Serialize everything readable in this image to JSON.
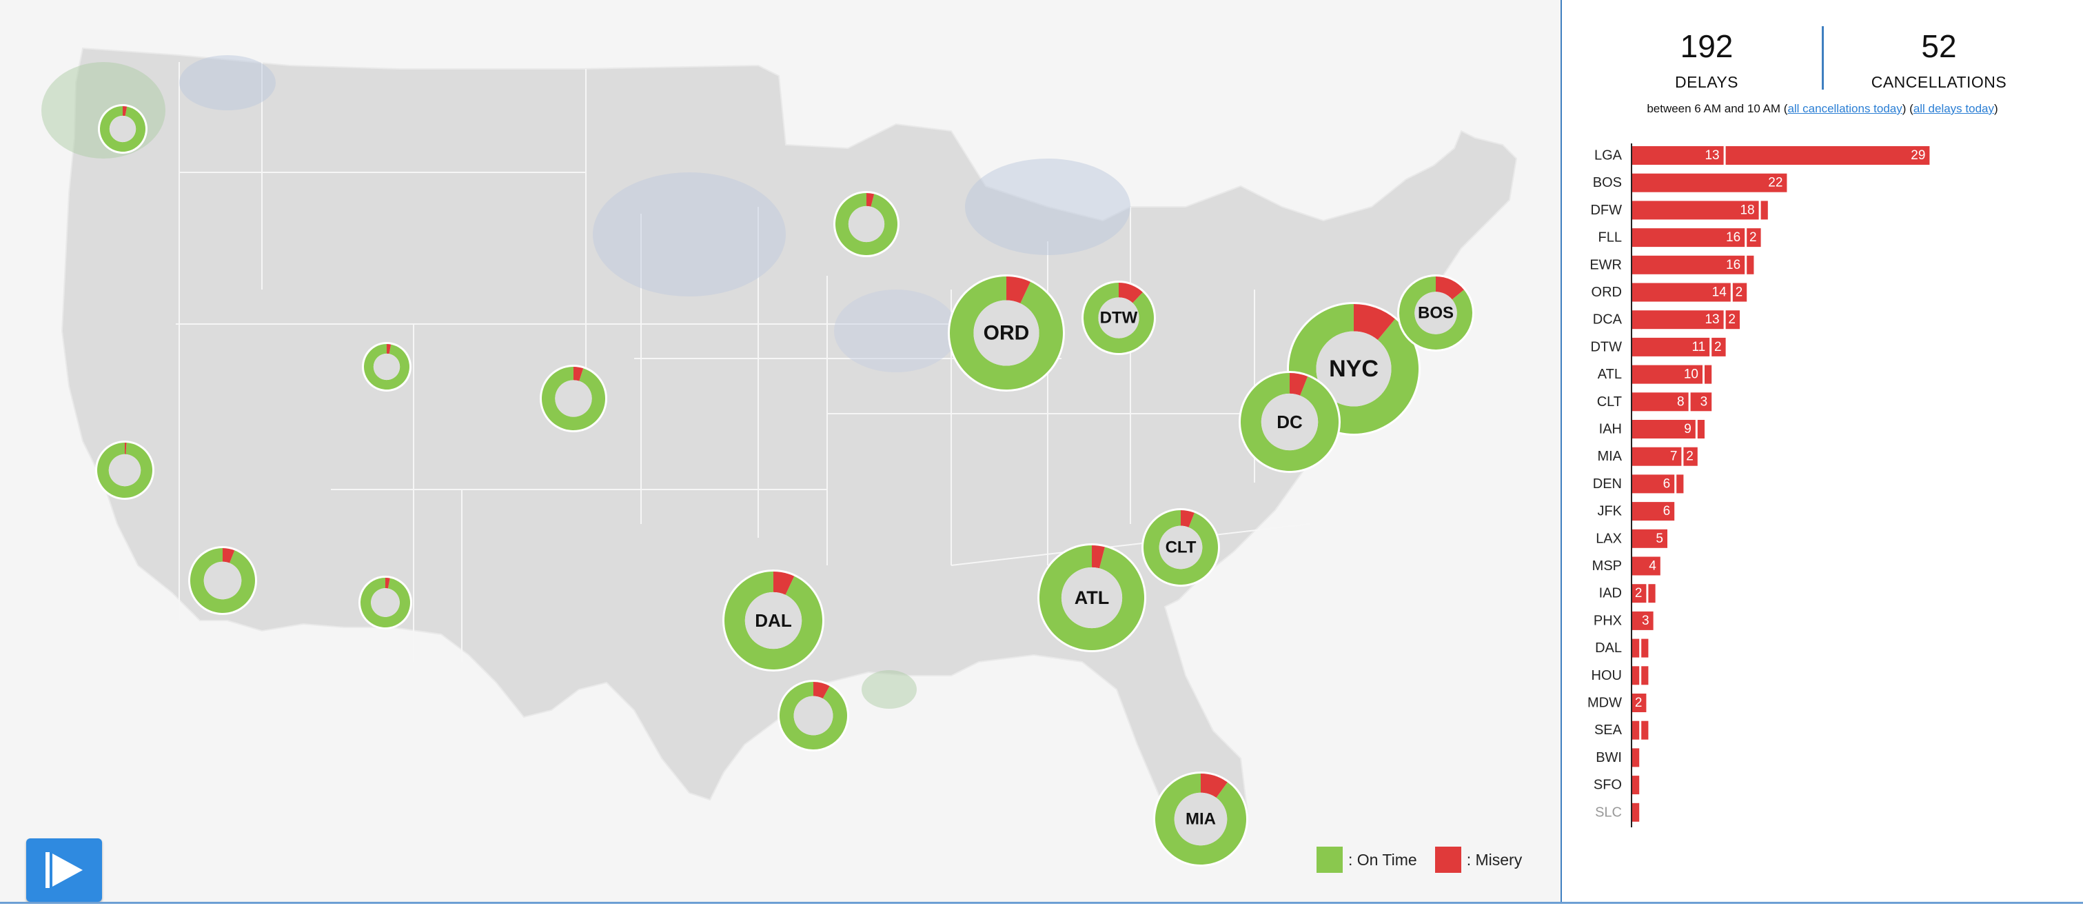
{
  "stats": {
    "delays_value": "192",
    "delays_label": "DELAYS",
    "cancellations_value": "52",
    "cancellations_label": "CANCELLATIONS"
  },
  "subline": {
    "prefix": "between 6 AM and 10 AM (",
    "cancellations_link": "all cancellations today",
    "mid": ") (",
    "delays_link": "all delays today",
    "suffix": ")"
  },
  "legend": {
    "on_time_label": ": On Time",
    "misery_label": ": Misery",
    "on_time_color": "#8ac84e",
    "misery_color": "#e03a3a"
  },
  "play_button": {
    "icon": "play-icon"
  },
  "hubs": [
    {
      "label": "",
      "misery_frac": 0.03
    },
    {
      "label": "",
      "misery_frac": 0.04
    },
    {
      "label": "",
      "misery_frac": 0.03
    },
    {
      "label": "",
      "misery_frac": 0.05
    },
    {
      "label": "",
      "misery_frac": 0.01
    },
    {
      "label": "",
      "misery_frac": 0.06
    },
    {
      "label": "",
      "misery_frac": 0.03
    },
    {
      "label": "",
      "misery_frac": 0.08
    },
    {
      "label": "ORD",
      "misery_frac": 0.07
    },
    {
      "label": "DTW",
      "misery_frac": 0.12
    },
    {
      "label": "NYC",
      "misery_frac": 0.11
    },
    {
      "label": "BOS",
      "misery_frac": 0.14
    },
    {
      "label": "DC",
      "misery_frac": 0.06
    },
    {
      "label": "CLT",
      "misery_frac": 0.06
    },
    {
      "label": "ATL",
      "misery_frac": 0.04
    },
    {
      "label": "DAL",
      "misery_frac": 0.07
    },
    {
      "label": "MIA",
      "misery_frac": 0.1
    }
  ],
  "chart_data": {
    "type": "bar",
    "stacked": true,
    "orientation": "horizontal",
    "categories": [
      "LGA",
      "BOS",
      "DFW",
      "FLL",
      "EWR",
      "ORD",
      "DCA",
      "DTW",
      "ATL",
      "CLT",
      "IAH",
      "MIA",
      "DEN",
      "JFK",
      "LAX",
      "MSP",
      "IAD",
      "PHX",
      "DAL",
      "HOU",
      "MDW",
      "SEA",
      "BWI",
      "SFO",
      "SLC"
    ],
    "series": [
      {
        "values": [
          13,
          22,
          18,
          16,
          16,
          14,
          13,
          11,
          10,
          8,
          9,
          7,
          6,
          6,
          5,
          4,
          2,
          3,
          1,
          1,
          2,
          1,
          1,
          1,
          1
        ],
        "labels": [
          "13",
          "22",
          "18",
          "16",
          "16",
          "14",
          "13",
          "11",
          "10",
          "8",
          "9",
          "7",
          "6",
          "6",
          "5",
          "4",
          "2",
          "3",
          "",
          "",
          "2",
          "",
          "",
          "",
          ""
        ]
      },
      {
        "values": [
          29,
          0,
          1,
          2,
          1,
          2,
          2,
          2,
          1,
          3,
          1,
          2,
          1,
          0,
          0,
          0,
          1,
          0,
          1,
          1,
          0,
          1,
          0,
          0,
          0
        ],
        "labels": [
          "29",
          "",
          "",
          "2",
          "",
          "2",
          "2",
          "2",
          "",
          "3",
          "",
          "2",
          "",
          "",
          "",
          "",
          "",
          "",
          "",
          "",
          "",
          "",
          "",
          "",
          ""
        ]
      }
    ],
    "bar_color": "#e03a3a"
  }
}
